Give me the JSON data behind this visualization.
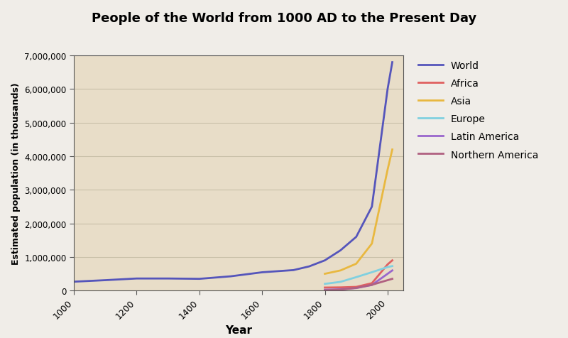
{
  "title": "People of the World from 1000 AD to the Present Day",
  "xlabel": "Year",
  "ylabel": "Estimated population (in thousands)",
  "title_bg_color": "#e88878",
  "plot_bg_color": "#e8ddc8",
  "fig_bg_color": "#f0ede8",
  "ylim": [
    0,
    7000000
  ],
  "xlim": [
    1000,
    2050
  ],
  "yticks": [
    0,
    1000000,
    2000000,
    3000000,
    4000000,
    5000000,
    6000000,
    7000000
  ],
  "ytick_labels": [
    "0",
    "1,000,000",
    "2,000,000",
    "3,000,000",
    "4,000,000",
    "5,000,000",
    "6,000,000",
    "7,000,000"
  ],
  "xticks": [
    1000,
    1200,
    1400,
    1600,
    1800,
    2000
  ],
  "series": {
    "World": {
      "color": "#5555bb",
      "years": [
        1000,
        1100,
        1200,
        1300,
        1400,
        1500,
        1600,
        1700,
        1750,
        1800,
        1850,
        1900,
        1950,
        2000,
        2015
      ],
      "values": [
        265000,
        310000,
        360000,
        360000,
        350000,
        425000,
        545000,
        610000,
        720000,
        900000,
        1200000,
        1600000,
        2500000,
        6000000,
        6800000
      ]
    },
    "Africa": {
      "color": "#e06060",
      "years": [
        1800,
        1850,
        1900,
        1950,
        2000,
        2015
      ],
      "values": [
        90000,
        95000,
        110000,
        220000,
        780000,
        900000
      ]
    },
    "Asia": {
      "color": "#e8b840",
      "years": [
        1800,
        1850,
        1900,
        1950,
        2000,
        2015
      ],
      "values": [
        500000,
        600000,
        800000,
        1400000,
        3600000,
        4200000
      ]
    },
    "Europe": {
      "color": "#80d0e0",
      "years": [
        1800,
        1850,
        1900,
        1950,
        2000,
        2015
      ],
      "values": [
        200000,
        260000,
        400000,
        547000,
        700000,
        730000
      ]
    },
    "Latin America": {
      "color": "#9966cc",
      "years": [
        1800,
        1850,
        1900,
        1950,
        2000,
        2015
      ],
      "values": [
        24000,
        38000,
        74000,
        167000,
        500000,
        600000
      ]
    },
    "Northern America": {
      "color": "#b06080",
      "years": [
        1800,
        1850,
        1900,
        1950,
        2000,
        2015
      ],
      "values": [
        7000,
        26000,
        82000,
        172000,
        310000,
        350000
      ]
    }
  },
  "legend_order": [
    "World",
    "Africa",
    "Asia",
    "Europe",
    "Latin America",
    "Northern America"
  ]
}
